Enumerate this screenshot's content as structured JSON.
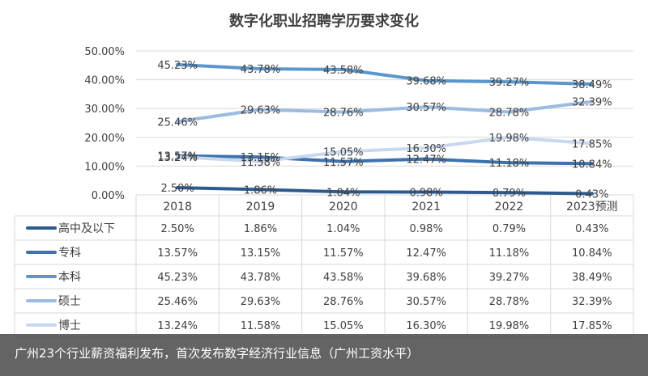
{
  "caption": "广州23个行业薪资福利发布，首次发布数字经济行业信息（广州工资水平）",
  "colors": {
    "series": [
      "#2e5b8f",
      "#3d72ad",
      "#5b96cc",
      "#9bbbe0",
      "#c8d8ee"
    ],
    "grid": "#d9d9d9",
    "text": "#404040",
    "overlay": "#282828"
  },
  "chart_data": {
    "type": "line",
    "title": "数字化职业招聘学历要求变化",
    "categories": [
      "2018",
      "2019",
      "2020",
      "2021",
      "2022",
      "2023预测"
    ],
    "ylim": [
      0,
      50
    ],
    "yticks": [
      "0.00%",
      "10.00%",
      "20.00%",
      "30.00%",
      "40.00%",
      "50.00%"
    ],
    "grid": true,
    "legend": "bottom",
    "data_table": true,
    "series": [
      {
        "name": "高中及以下",
        "values": [
          2.5,
          1.86,
          1.04,
          0.98,
          0.79,
          0.43
        ],
        "labels": [
          "2.50%",
          "1.86%",
          "1.04%",
          "0.98%",
          "0.79%",
          "0.43%"
        ]
      },
      {
        "name": "专科",
        "values": [
          13.57,
          13.15,
          11.57,
          12.47,
          11.18,
          10.84
        ],
        "labels": [
          "13.57%",
          "13.15%",
          "11.57%",
          "12.47%",
          "11.18%",
          "10.84%"
        ]
      },
      {
        "name": "本科",
        "values": [
          45.23,
          43.78,
          43.58,
          39.68,
          39.27,
          38.49
        ],
        "labels": [
          "45.23%",
          "43.78%",
          "43.58%",
          "39.68%",
          "39.27%",
          "38.49%"
        ]
      },
      {
        "name": "硕士",
        "values": [
          25.46,
          29.63,
          28.76,
          30.57,
          28.78,
          32.39
        ],
        "labels": [
          "25.46%",
          "29.63%",
          "28.76%",
          "30.57%",
          "28.78%",
          "32.39%"
        ]
      },
      {
        "name": "博士",
        "values": [
          13.24,
          11.58,
          15.05,
          16.3,
          19.98,
          17.85
        ],
        "labels": [
          "13.24%",
          "11.58%",
          "15.05%",
          "16.30%",
          "19.98%",
          "17.85%"
        ]
      }
    ]
  }
}
